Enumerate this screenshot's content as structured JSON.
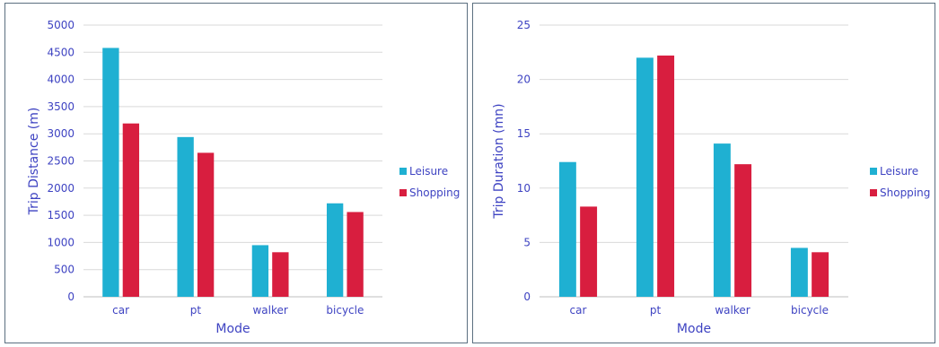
{
  "chart_data": [
    {
      "type": "bar",
      "title": "",
      "xlabel": "Mode",
      "ylabel": "Trip Distance (m)",
      "categories": [
        "car",
        "pt",
        "walker",
        "bicycle"
      ],
      "ylim": [
        0,
        5000
      ],
      "yticks": [
        0,
        500,
        1000,
        1500,
        2000,
        2500,
        3000,
        3500,
        4000,
        4500,
        5000
      ],
      "grid": true,
      "legend_position": "right",
      "series": [
        {
          "name": "Leisure",
          "color": "#1fb0d2",
          "values": [
            4580,
            2940,
            950,
            1720
          ]
        },
        {
          "name": "Shopping",
          "color": "#d81e3f",
          "values": [
            3190,
            2650,
            820,
            1560
          ]
        }
      ]
    },
    {
      "type": "bar",
      "title": "",
      "xlabel": "Mode",
      "ylabel": "Trip Duration (mn)",
      "categories": [
        "car",
        "pt",
        "walker",
        "bicycle"
      ],
      "ylim": [
        0,
        25
      ],
      "yticks": [
        0,
        5,
        10,
        15,
        20,
        25
      ],
      "grid": true,
      "legend_position": "right",
      "series": [
        {
          "name": "Leisure",
          "color": "#1fb0d2",
          "values": [
            12.4,
            22.0,
            14.1,
            4.5
          ]
        },
        {
          "name": "Shopping",
          "color": "#d81e3f",
          "values": [
            8.3,
            22.2,
            12.2,
            4.1
          ]
        }
      ]
    }
  ]
}
